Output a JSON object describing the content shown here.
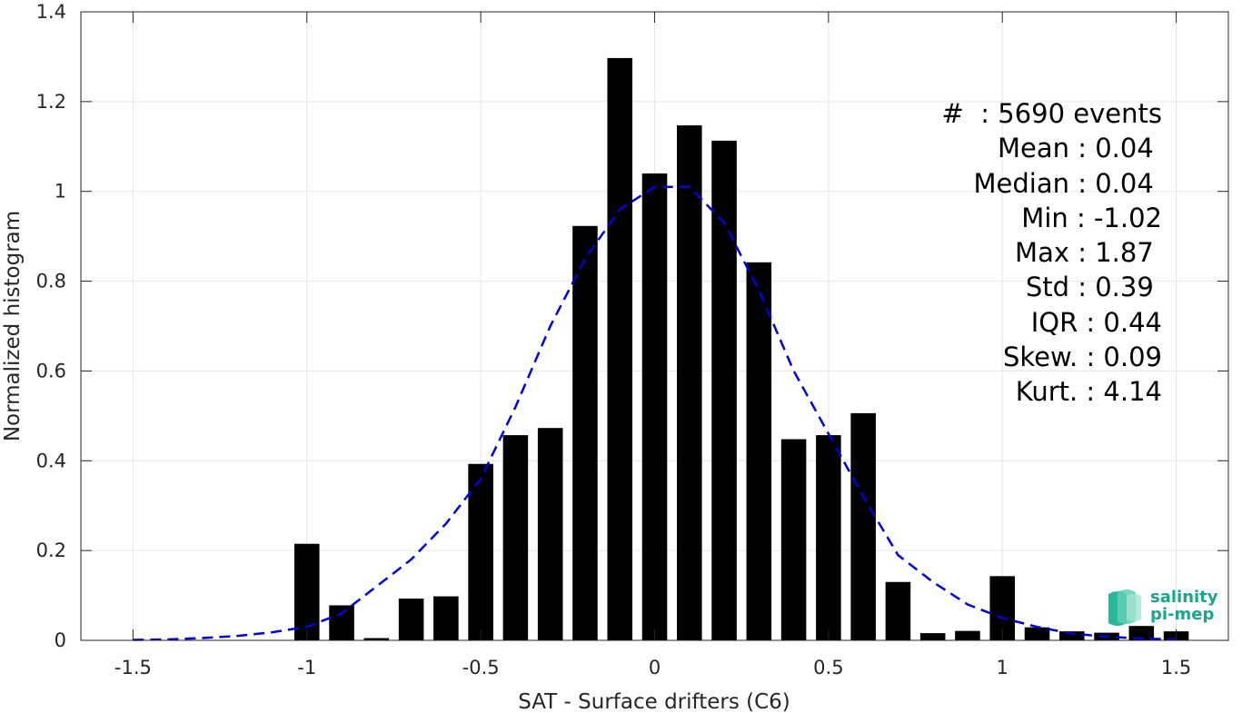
{
  "chart_data": {
    "type": "bar",
    "xlabel": "SAT - Surface drifters (C6)",
    "ylabel": "Normalized histogram",
    "xlim": [
      -1.65,
      1.65
    ],
    "ylim": [
      0,
      1.4
    ],
    "xticks": [
      "-1.5",
      "-1",
      "-0.5",
      "0",
      "0.5",
      "1",
      "1.5"
    ],
    "xtick_values": [
      -1.5,
      -1,
      -0.5,
      0,
      0.5,
      1,
      1.5
    ],
    "yticks": [
      "0",
      "0.2",
      "0.4",
      "0.6",
      "0.8",
      "1",
      "1.2",
      "1.4"
    ],
    "ytick_values": [
      0,
      0.2,
      0.4,
      0.6,
      0.8,
      1,
      1.2,
      1.4
    ],
    "grid": true,
    "bar_color": "#000000",
    "fit_color": "#0000dd",
    "bins": [
      -1.0,
      -0.9,
      -0.8,
      -0.7,
      -0.6,
      -0.5,
      -0.4,
      -0.3,
      -0.2,
      -0.1,
      0.0,
      0.1,
      0.2,
      0.3,
      0.4,
      0.5,
      0.6,
      0.7,
      0.8,
      0.9,
      1.0,
      1.1,
      1.2,
      1.3,
      1.4,
      1.5
    ],
    "values": [
      0.215,
      0.078,
      0.005,
      0.093,
      0.098,
      0.393,
      0.457,
      0.473,
      0.923,
      1.297,
      1.04,
      1.147,
      1.113,
      0.842,
      0.448,
      0.457,
      0.506,
      0.13,
      0.016,
      0.021,
      0.143,
      0.029,
      0.02,
      0.017,
      0.032,
      0.02
    ],
    "fit": {
      "style": "dashed",
      "x": [
        -1.5,
        -1.4,
        -1.3,
        -1.2,
        -1.1,
        -1.0,
        -0.9,
        -0.8,
        -0.7,
        -0.6,
        -0.5,
        -0.4,
        -0.3,
        -0.2,
        -0.1,
        0.0,
        0.1,
        0.2,
        0.3,
        0.4,
        0.5,
        0.6,
        0.7,
        0.8,
        0.9,
        1.0,
        1.1,
        1.2,
        1.3,
        1.4,
        1.5
      ],
      "y": [
        0.001,
        0.002,
        0.005,
        0.01,
        0.018,
        0.03,
        0.06,
        0.12,
        0.18,
        0.26,
        0.36,
        0.52,
        0.7,
        0.85,
        0.96,
        1.01,
        1.01,
        0.93,
        0.78,
        0.6,
        0.46,
        0.32,
        0.19,
        0.13,
        0.08,
        0.05,
        0.03,
        0.015,
        0.008,
        0.004,
        0.002
      ]
    }
  },
  "stats": [
    "#  : 5690 events",
    "Mean : 0.04 ",
    "Median : 0.04 ",
    "Min : -1.02",
    "Max : 1.87 ",
    "Std : 0.39 ",
    "IQR : 0.44",
    "Skew. : 0.09",
    "Kurt. : 4.14"
  ],
  "logo": {
    "line1": "salinity",
    "line2": "pi-mep",
    "color": "#1aa68c"
  }
}
